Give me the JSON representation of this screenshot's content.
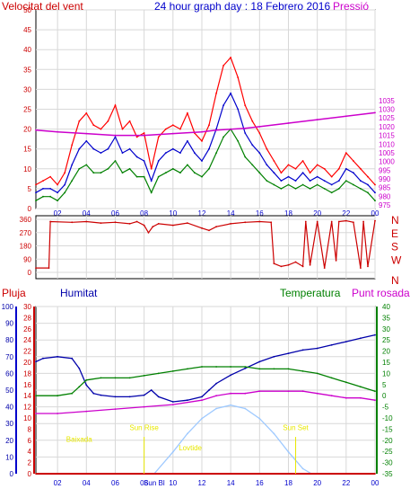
{
  "title": "24 hour graph day : 18 Febrero 2016",
  "colors": {
    "wind": "#ff0000",
    "wind_avg": "#0000cc",
    "gust_low": "#008000",
    "pressure": "#cc00cc",
    "direction": "#cc0000",
    "humidity": "#0000aa",
    "temperature": "#008000",
    "dewpoint": "#cc00cc",
    "rain": "#cc0000",
    "solar": "#9ec9ff",
    "sun_marker": "#e8e800"
  },
  "chart_data": [
    {
      "type": "line",
      "name": "wind-pressure",
      "title": "24 hour graph day : 18 Febrero 2016",
      "ylabel": "Velocitat del vent",
      "y2label": "Pressió",
      "ylim": [
        0,
        50
      ],
      "y2lim": [
        973,
        1087
      ],
      "yticks": [
        0,
        5,
        10,
        15,
        20,
        25,
        30,
        35,
        40,
        45,
        50
      ],
      "y2ticks": [
        975,
        980,
        985,
        990,
        995,
        1000,
        1005,
        1010,
        1015,
        1020,
        1025,
        1030,
        1035
      ],
      "xticks": [
        "02",
        "04",
        "06",
        "08",
        "10",
        "12",
        "14",
        "16",
        "18",
        "20",
        "22",
        "00"
      ],
      "xlim": [
        0.5,
        24
      ],
      "grid": true,
      "series": [
        {
          "key": "gust",
          "color": "#ff0000",
          "x": [
            0.5,
            1,
            1.5,
            2,
            2.5,
            3,
            3.5,
            4,
            4.5,
            5,
            5.5,
            6,
            6.5,
            7,
            7.5,
            8,
            8.5,
            9,
            9.5,
            10,
            10.5,
            11,
            11.5,
            12,
            12.5,
            13,
            13.5,
            14,
            14.5,
            15,
            15.5,
            16,
            16.5,
            17,
            17.5,
            18,
            18.5,
            19,
            19.5,
            20,
            20.5,
            21,
            21.5,
            22,
            22.5,
            23,
            23.5,
            24
          ],
          "values": [
            6,
            7,
            8,
            6,
            9,
            16,
            22,
            24,
            21,
            20,
            22,
            26,
            20,
            22,
            18,
            19,
            10,
            18,
            20,
            21,
            20,
            24,
            19,
            17,
            21,
            29,
            36,
            38,
            33,
            26,
            22,
            19,
            15,
            12,
            9,
            11,
            10,
            12,
            9,
            11,
            10,
            8,
            10,
            14,
            12,
            10,
            8,
            6
          ]
        },
        {
          "key": "average",
          "color": "#0000cc",
          "x": [
            0.5,
            1,
            1.5,
            2,
            2.5,
            3,
            3.5,
            4,
            4.5,
            5,
            5.5,
            6,
            6.5,
            7,
            7.5,
            8,
            8.5,
            9,
            9.5,
            10,
            10.5,
            11,
            11.5,
            12,
            12.5,
            13,
            13.5,
            14,
            14.5,
            15,
            15.5,
            16,
            16.5,
            17,
            17.5,
            18,
            18.5,
            19,
            19.5,
            20,
            20.5,
            21,
            21.5,
            22,
            22.5,
            23,
            23.5,
            24
          ],
          "values": [
            4,
            5,
            5,
            4,
            6,
            11,
            15,
            17,
            15,
            14,
            15,
            18,
            14,
            15,
            13,
            12,
            7,
            12,
            14,
            15,
            14,
            17,
            14,
            12,
            15,
            20,
            26,
            29,
            25,
            19,
            16,
            14,
            11,
            9,
            7,
            8,
            7,
            9,
            7,
            8,
            7,
            6,
            7,
            10,
            9,
            7,
            6,
            4
          ]
        },
        {
          "key": "low",
          "color": "#008000",
          "x": [
            0.5,
            1,
            1.5,
            2,
            2.5,
            3,
            3.5,
            4,
            4.5,
            5,
            5.5,
            6,
            6.5,
            7,
            7.5,
            8,
            8.5,
            9,
            9.5,
            10,
            10.5,
            11,
            11.5,
            12,
            12.5,
            13,
            13.5,
            14,
            14.5,
            15,
            15.5,
            16,
            16.5,
            17,
            17.5,
            18,
            18.5,
            19,
            19.5,
            20,
            20.5,
            21,
            21.5,
            22,
            22.5,
            23,
            23.5,
            24
          ],
          "values": [
            2,
            3,
            3,
            2,
            4,
            7,
            10,
            11,
            9,
            9,
            10,
            12,
            9,
            10,
            8,
            8,
            4,
            8,
            9,
            10,
            9,
            11,
            9,
            8,
            10,
            14,
            18,
            20,
            17,
            13,
            11,
            9,
            7,
            6,
            5,
            6,
            5,
            6,
            5,
            6,
            5,
            4,
            5,
            7,
            6,
            5,
            4,
            2
          ]
        },
        {
          "key": "pressure",
          "axis": "y2",
          "color": "#cc00cc",
          "x": [
            0.5,
            2,
            4,
            6,
            8,
            10,
            12,
            13,
            14,
            15,
            16,
            18,
            20,
            22,
            24
          ],
          "values": [
            1018,
            1017,
            1016,
            1015,
            1015,
            1016,
            1017,
            1018,
            1018.5,
            1019,
            1020,
            1022,
            1024,
            1026,
            1028
          ]
        }
      ]
    },
    {
      "type": "line",
      "name": "wind-direction",
      "ylim": [
        0,
        360
      ],
      "yticks": [
        0,
        90,
        180,
        270,
        360
      ],
      "y2ticklabels": [
        "N",
        "W",
        "S",
        "E",
        "N"
      ],
      "xlim": [
        0.5,
        24
      ],
      "grid": true,
      "series": [
        {
          "key": "direction",
          "color": "#cc0000",
          "x": [
            0.5,
            1.4,
            1.5,
            3,
            4,
            5,
            6,
            7,
            7.5,
            8,
            8.3,
            8.6,
            9,
            10,
            11,
            12,
            12.5,
            13,
            14,
            15,
            16,
            16.8,
            17,
            17.5,
            18,
            18.5,
            19,
            19.2,
            19.5,
            20,
            20.5,
            21,
            21.3,
            21.5,
            22,
            22.5,
            23,
            23.2,
            23.5,
            24
          ],
          "values": [
            30,
            30,
            345,
            340,
            345,
            335,
            340,
            330,
            345,
            320,
            270,
            310,
            330,
            320,
            335,
            300,
            285,
            310,
            330,
            340,
            345,
            340,
            60,
            40,
            50,
            70,
            40,
            345,
            50,
            345,
            30,
            345,
            80,
            345,
            350,
            340,
            30,
            345,
            40,
            350
          ]
        }
      ]
    },
    {
      "type": "line",
      "name": "temp-humidity-rain",
      "legend": [
        "Pluja",
        "Humitat",
        "Temperatura",
        "Punt rosada"
      ],
      "humidity_ylim": [
        0,
        100
      ],
      "humidity_ticks": [
        0,
        10,
        20,
        30,
        40,
        50,
        60,
        70,
        80,
        90,
        100
      ],
      "rain_ylim": [
        0,
        30
      ],
      "rain_ticks": [
        0,
        2,
        4,
        6,
        8,
        10,
        12,
        14,
        16,
        18,
        20,
        22,
        24,
        26,
        28,
        30
      ],
      "temp_ylim": [
        -35,
        40
      ],
      "temp_ticks": [
        -35,
        -30,
        -25,
        -20,
        -15,
        -10,
        -5,
        0,
        5,
        10,
        15,
        20,
        25,
        30,
        35,
        40
      ],
      "xticks": [
        "02",
        "04",
        "06",
        "08",
        "Sun Bl",
        "10",
        "12",
        "14",
        "16",
        "18",
        "20",
        "22",
        "00"
      ],
      "xlim": [
        0.5,
        24
      ],
      "grid": true,
      "annotations": [
        {
          "text": "Baixada",
          "x": 3.5,
          "y": 19
        },
        {
          "text": "Sun Rise",
          "x": 8,
          "y": 26
        },
        {
          "text": "Lovtide",
          "x": 11.2,
          "y": 14
        },
        {
          "text": "Sun Set",
          "x": 18.5,
          "y": 26
        }
      ],
      "series": [
        {
          "key": "humidity",
          "axis": "humidity",
          "color": "#0000aa",
          "x": [
            0.5,
            1,
            2,
            3,
            3.5,
            4,
            4.5,
            5,
            6,
            7,
            8,
            8.5,
            9,
            10,
            11,
            12,
            12.5,
            13,
            14,
            15,
            16,
            17,
            18,
            19,
            20,
            21,
            22,
            23,
            24
          ],
          "values": [
            67,
            69,
            70,
            69,
            63,
            53,
            48,
            47,
            46,
            46,
            47,
            50,
            46,
            43,
            44,
            46,
            50,
            54,
            59,
            63,
            67,
            70,
            72,
            74,
            75,
            77,
            79,
            81,
            83
          ]
        },
        {
          "key": "temperature",
          "axis": "temp",
          "color": "#008000",
          "x": [
            0.5,
            2,
            3,
            3.5,
            4,
            5,
            6,
            7,
            8,
            9,
            10,
            11,
            12,
            13,
            14,
            15,
            16,
            17,
            18,
            19,
            20,
            21,
            22,
            23,
            24
          ],
          "values": [
            0,
            0,
            1,
            4,
            7,
            8,
            8,
            8,
            9,
            10,
            11,
            12,
            13,
            13,
            13,
            13,
            12,
            12,
            12,
            11,
            10,
            8,
            6,
            4,
            2
          ]
        },
        {
          "key": "dewpoint",
          "axis": "temp",
          "color": "#cc00cc",
          "x": [
            0.5,
            2,
            4,
            6,
            8,
            10,
            12,
            13,
            14,
            15,
            16,
            18,
            19,
            20,
            21,
            22,
            23,
            24
          ],
          "values": [
            -8,
            -8,
            -7,
            -6,
            -5,
            -4,
            -2,
            0,
            1,
            1,
            2,
            2,
            2,
            1,
            0,
            -1,
            -1,
            -2
          ]
        },
        {
          "key": "solar",
          "axis": "humidity",
          "color": "#9ec9ff",
          "x": [
            8.7,
            10,
            11,
            12,
            13,
            14,
            15,
            16,
            17,
            18,
            19,
            19.6
          ],
          "values": [
            0,
            13,
            24,
            33,
            39,
            41,
            39,
            33,
            24,
            13,
            3,
            0
          ]
        },
        {
          "key": "rain",
          "axis": "rain",
          "color": "#cc0000",
          "x": [
            0.5,
            24
          ],
          "values": [
            0,
            0
          ]
        }
      ]
    }
  ]
}
